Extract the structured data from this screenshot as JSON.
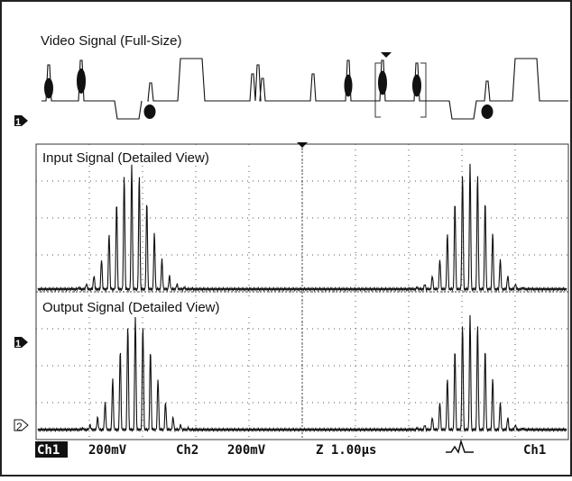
{
  "panel": {
    "title": "Video Signal (Full-Size)",
    "marker": "1"
  },
  "scope": {
    "upper_label": "Input Signal (Detailed View)",
    "lower_label": "Output Signal (Detailed View)",
    "ch1_marker": "1",
    "ch2_marker": "2"
  },
  "footer": {
    "ch1": "Ch1",
    "ch1_scale": "200mV",
    "ch2": "Ch2",
    "ch2_scale": "200mV",
    "timebase": "Z 1.00µs",
    "trigger_source": "Ch1"
  }
}
